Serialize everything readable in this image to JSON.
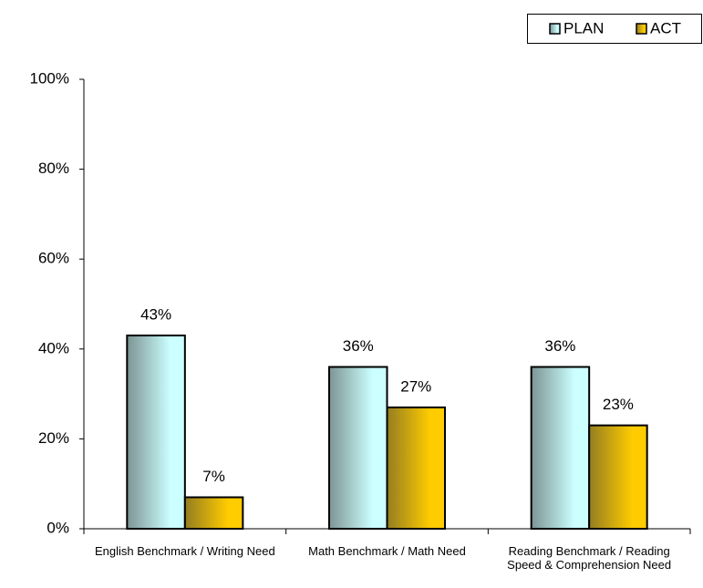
{
  "chart_data": {
    "type": "bar",
    "categories": [
      "English Benchmark / Writing Need",
      "Math Benchmark / Math Need",
      "Reading  Benchmark / Reading Speed & Comprehension Need"
    ],
    "series": [
      {
        "name": "PLAN",
        "color": "#ccffff",
        "values": [
          43,
          36,
          36
        ],
        "value_labels": [
          "43%",
          "36%",
          "36%"
        ]
      },
      {
        "name": "ACT",
        "color": "#ffcc00",
        "values": [
          7,
          27,
          23
        ],
        "value_labels": [
          "7%",
          "27%",
          "23%"
        ]
      }
    ],
    "ylim": [
      0,
      100
    ],
    "yticks": [
      {
        "value": 0,
        "label": "0%"
      },
      {
        "value": 20,
        "label": "20%"
      },
      {
        "value": 40,
        "label": "40%"
      },
      {
        "value": 60,
        "label": "60%"
      },
      {
        "value": 80,
        "label": "80%"
      },
      {
        "value": 100,
        "label": "100%"
      }
    ],
    "legend": "top-right"
  }
}
